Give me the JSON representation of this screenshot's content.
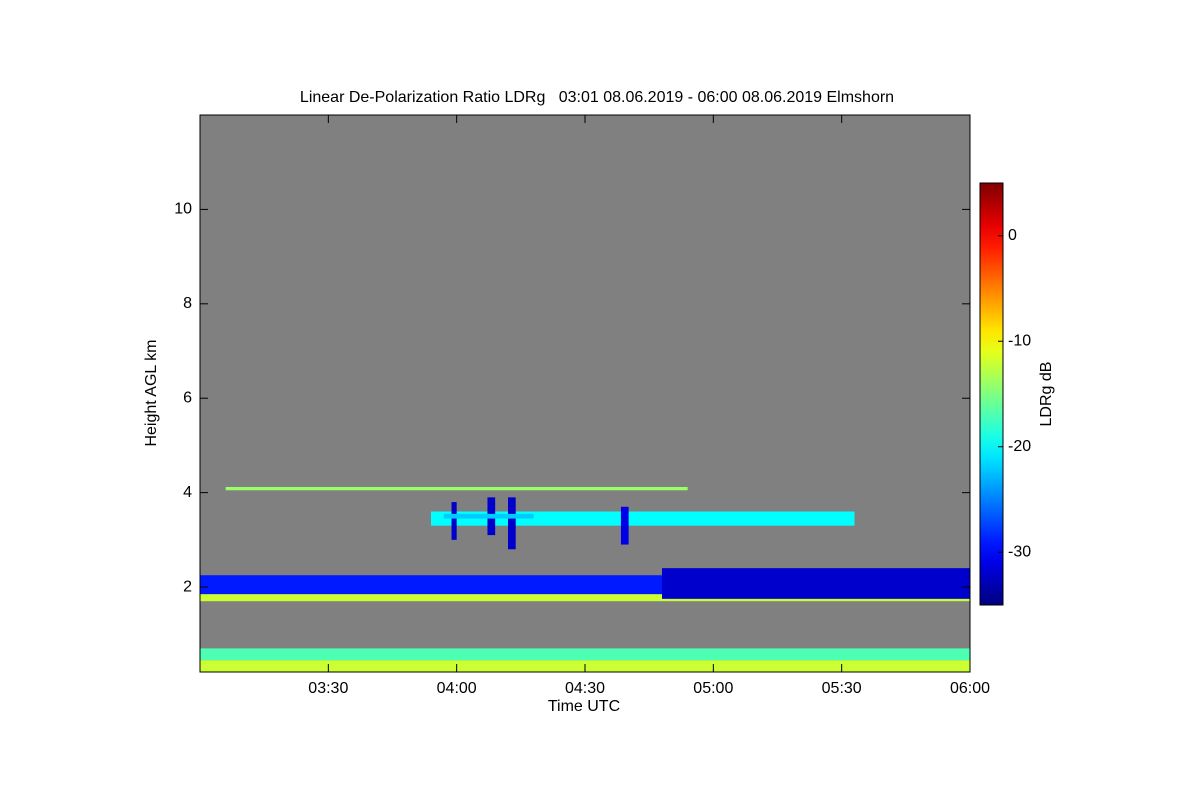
{
  "chart_data": {
    "type": "heatmap",
    "title": "Linear De-Polarization Ratio LDRg   03:01 08.06.2019 - 06:00 08.06.2019 Elmshorn",
    "x_label": "Time UTC",
    "y_label": "Height AGL km",
    "colorbar_label": "LDRg dB",
    "xlim": [
      3.0,
      6.0
    ],
    "xticks": [
      {
        "value": 3.5,
        "label": "03:30"
      },
      {
        "value": 4.0,
        "label": "04:00"
      },
      {
        "value": 4.5,
        "label": "04:30"
      },
      {
        "value": 5.0,
        "label": "05:00"
      },
      {
        "value": 5.5,
        "label": "05:30"
      },
      {
        "value": 6.0,
        "label": "06:00"
      }
    ],
    "ylim": [
      0.2,
      12
    ],
    "yticks": [
      2,
      4,
      6,
      8,
      10
    ],
    "clim": [
      -35,
      5
    ],
    "cticks": [
      0,
      -10,
      -20,
      -30
    ],
    "colormap": "jet",
    "background": "#808080",
    "cells": {
      "x0": [
        3.0,
        3.0,
        3.0,
        3.0,
        4.8,
        3.1,
        3.9,
        3.98,
        4.12,
        4.2,
        4.64,
        3.95
      ],
      "x1": [
        6.0,
        6.0,
        6.0,
        4.8,
        6.0,
        4.9,
        5.55,
        4.0,
        4.15,
        4.23,
        4.67,
        4.3
      ],
      "y0": [
        0.2,
        0.45,
        1.7,
        1.85,
        1.75,
        4.05,
        3.3,
        3.0,
        3.1,
        2.8,
        2.9,
        3.45
      ],
      "y1": [
        0.45,
        0.7,
        1.85,
        2.25,
        2.4,
        4.12,
        3.6,
        3.8,
        3.9,
        3.9,
        3.7,
        3.55
      ],
      "values": [
        -12,
        -17,
        -12,
        -29,
        -32,
        -14,
        -20,
        -32,
        -32,
        -32,
        -31,
        -22
      ]
    }
  }
}
